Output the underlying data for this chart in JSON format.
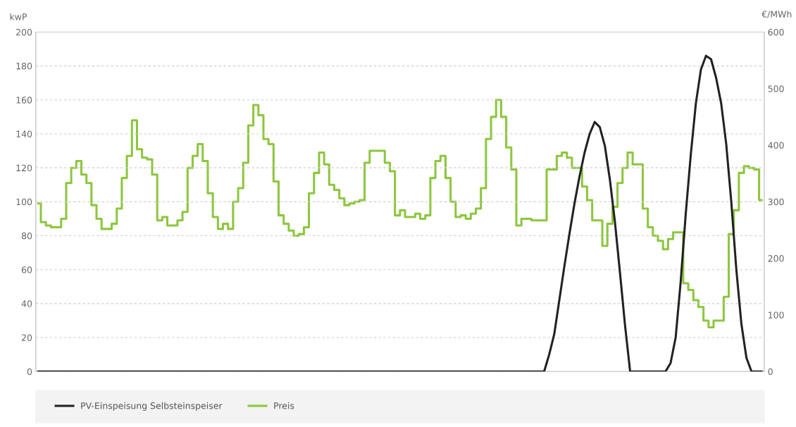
{
  "chart_data": {
    "type": "line",
    "ylabel": "kwP",
    "y2label": "€/MWh",
    "categories": [
      null,
      null,
      null,
      null,
      null,
      null,
      null,
      null,
      null,
      null,
      null,
      null,
      null,
      null,
      null,
      null,
      null,
      null,
      null,
      null,
      null,
      null,
      null,
      null,
      null,
      null,
      null,
      null,
      null,
      null,
      null,
      null,
      null,
      null,
      null,
      null,
      null,
      null,
      null,
      null,
      null,
      null,
      null,
      null,
      null,
      null,
      null,
      null,
      null,
      null,
      null,
      null,
      null,
      null,
      null,
      null,
      null,
      null,
      null,
      null,
      null,
      null,
      null,
      null,
      null,
      null,
      null,
      null,
      null,
      null,
      null,
      null,
      null,
      null,
      null,
      null,
      null,
      null,
      null,
      null,
      null,
      null,
      null,
      null,
      null,
      null,
      null,
      null,
      null,
      null,
      null,
      null,
      null,
      null,
      null,
      null,
      null,
      null,
      null,
      null,
      null,
      null,
      null,
      null,
      null,
      null,
      null,
      null,
      null,
      null,
      null,
      null,
      null,
      null,
      null,
      null,
      null,
      null,
      null,
      null,
      null,
      null,
      null,
      null,
      null,
      null,
      null,
      null,
      null,
      null,
      null,
      null,
      null,
      null,
      null,
      null,
      null,
      null,
      null,
      null,
      null,
      null,
      null,
      null
    ],
    "series": [
      {
        "name": "PV-Einspeisung Selbsteinspeiser",
        "color": "#222222",
        "values": [
          0,
          0,
          0,
          0,
          0,
          0,
          0,
          0,
          0,
          0,
          0,
          0,
          0,
          0,
          0,
          0,
          0,
          0,
          0,
          0,
          0,
          0,
          0,
          0,
          0,
          0,
          0,
          0,
          0,
          0,
          0,
          0,
          0,
          0,
          0,
          0,
          0,
          0,
          0,
          0,
          0,
          0,
          0,
          0,
          0,
          0,
          0,
          0,
          0,
          0,
          0,
          0,
          0,
          0,
          0,
          0,
          0,
          0,
          0,
          0,
          0,
          0,
          0,
          0,
          0,
          0,
          0,
          0,
          0,
          0,
          0,
          0,
          0,
          0,
          0,
          0,
          0,
          0,
          0,
          0,
          0,
          0,
          0,
          0,
          0,
          0,
          0,
          0,
          0,
          0,
          0,
          0,
          0,
          0,
          0,
          0,
          0,
          0,
          0,
          0,
          0,
          10,
          22,
          42,
          62,
          81,
          99,
          115,
          129,
          140,
          147,
          144,
          133,
          113,
          88,
          58,
          27,
          0,
          0,
          0,
          0,
          0,
          0,
          0,
          0,
          5,
          20,
          53,
          93,
          128,
          158,
          178,
          186,
          184,
          173,
          158,
          134,
          100,
          60,
          28,
          8,
          0,
          0,
          0
        ]
      },
      {
        "name": "Preis",
        "type": "step",
        "axis": "y2",
        "color": "#8dc63f",
        "values": [
          297,
          264,
          258,
          255,
          255,
          270,
          333,
          360,
          372,
          348,
          333,
          294,
          270,
          252,
          252,
          261,
          288,
          342,
          381,
          444,
          393,
          378,
          375,
          348,
          267,
          273,
          258,
          258,
          267,
          282,
          360,
          381,
          402,
          372,
          315,
          273,
          252,
          261,
          252,
          300,
          324,
          369,
          435,
          471,
          453,
          411,
          402,
          336,
          276,
          261,
          249,
          240,
          243,
          255,
          315,
          351,
          387,
          366,
          330,
          321,
          306,
          294,
          297,
          300,
          303,
          369,
          390,
          390,
          390,
          369,
          354,
          276,
          285,
          273,
          273,
          279,
          270,
          276,
          342,
          372,
          381,
          342,
          300,
          273,
          276,
          270,
          279,
          288,
          324,
          411,
          450,
          480,
          450,
          396,
          357,
          258,
          270,
          270,
          267,
          267,
          267,
          357,
          357,
          381,
          387,
          378,
          360,
          360,
          327,
          303,
          267,
          267,
          222,
          261,
          291,
          333,
          360,
          387,
          366,
          366,
          288,
          255,
          240,
          231,
          216,
          234,
          246,
          246,
          156,
          144,
          126,
          114,
          90,
          78,
          90,
          90,
          132,
          243,
          285,
          351,
          363,
          360,
          357,
          303
        ]
      }
    ],
    "ylim": [
      0,
      200
    ],
    "yticks": [
      0,
      20,
      40,
      60,
      80,
      100,
      120,
      140,
      160,
      180,
      200
    ],
    "y2lim": [
      0,
      600
    ],
    "y2ticks": [
      0,
      100,
      200,
      300,
      400,
      500,
      600
    ],
    "grid": "y",
    "legend": "bottom",
    "line_style": "solid",
    "marker": "none"
  }
}
